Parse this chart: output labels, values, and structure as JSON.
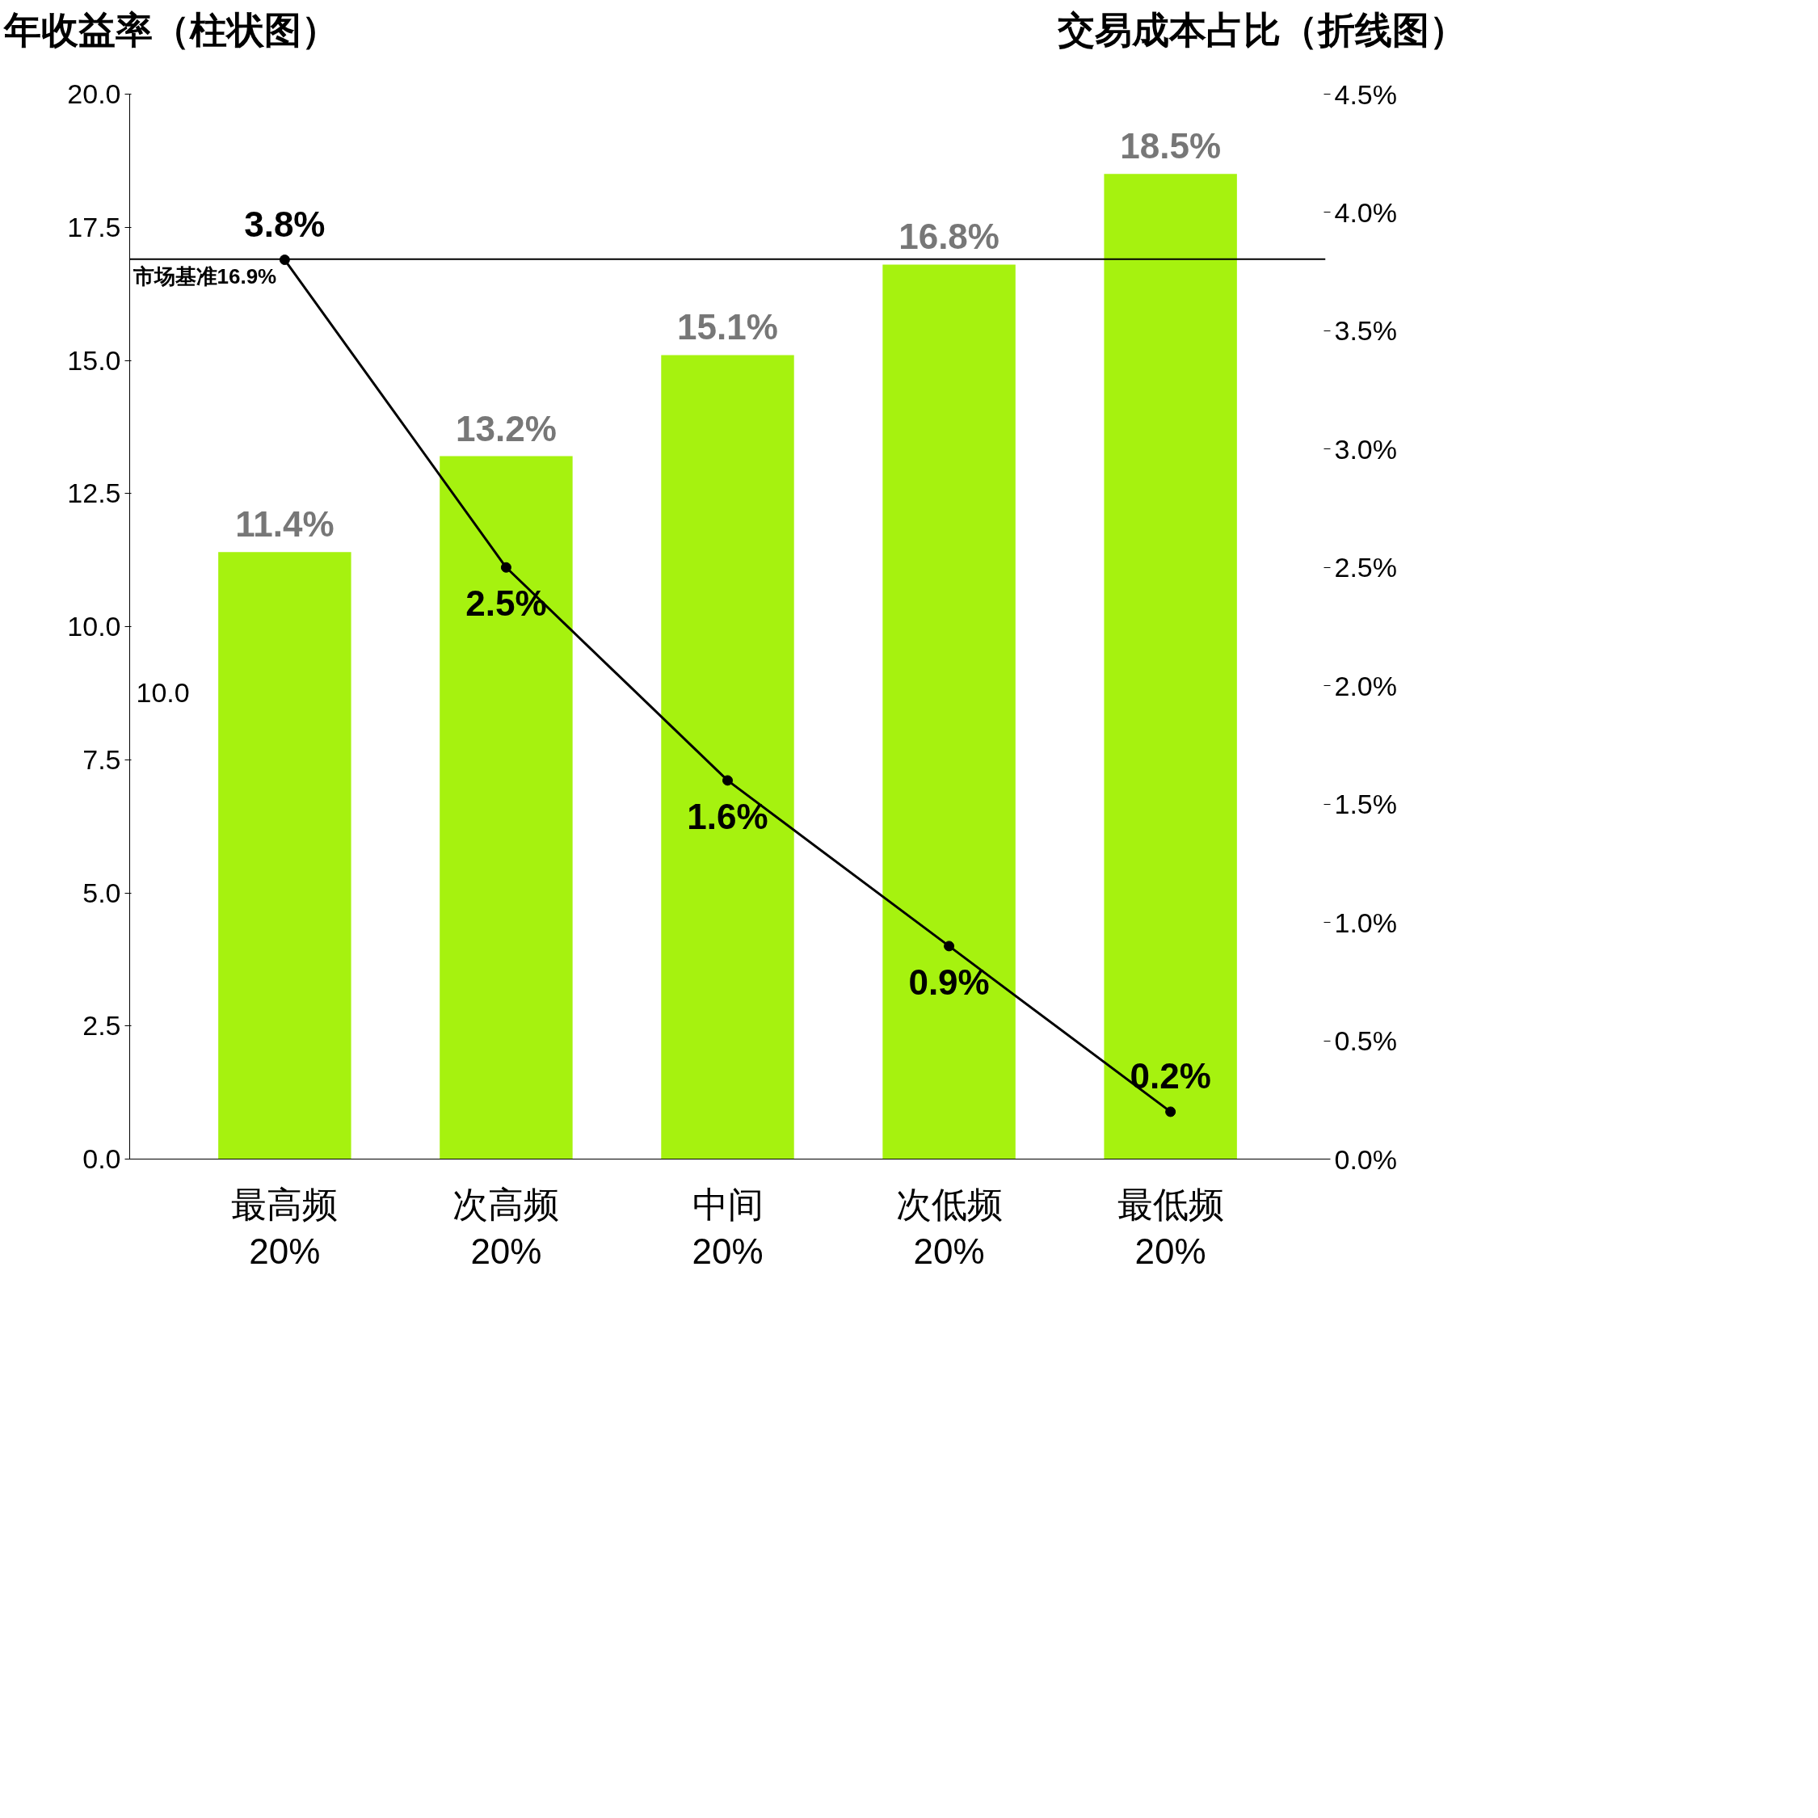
{
  "chart_data": {
    "type": "bar",
    "ylabel": "年收益率（柱状图）",
    "y2label": "交易成本占比（折线图）",
    "categories": [
      "最高频\n20%",
      "次高频\n20%",
      "中间\n20%",
      "次低频\n20%",
      "最低频\n20%"
    ],
    "series": [
      {
        "color": "#a6f20f",
        "values": [
          11.4,
          13.2,
          15.1,
          16.8,
          18.5
        ],
        "value_labels": [
          "11.4%",
          "13.2%",
          "15.1%",
          "16.8%",
          "18.5%"
        ]
      },
      {
        "type": "line",
        "axis": "y2",
        "color": "#000000",
        "marker": "circle",
        "values": [
          3.8,
          2.5,
          1.6,
          0.9,
          0.2
        ],
        "value_labels": [
          "3.8%",
          "2.5%",
          "1.6%",
          "0.9%",
          "0.2%"
        ]
      }
    ],
    "ylim": [
      0,
      20
    ],
    "yticks": [
      {
        "value": 0,
        "label": "0.0"
      },
      2.5,
      {
        "value": 5,
        "label": "5.0"
      },
      7.5,
      {
        "value": 10,
        "label": "10.0"
      },
      12.5,
      {
        "value": 15,
        "label": "15.0"
      },
      17.5,
      {
        "value": 20,
        "label": "20.0"
      }
    ],
    "annotations": [
      "10.0"
    ],
    "y2lim": [
      0,
      4.5
    ],
    "y2ticks": [
      {
        "value": 0,
        "label": "0.0%"
      },
      {
        "value": 0.5,
        "label": "0.5%"
      },
      {
        "value": 1,
        "label": "1.0%"
      },
      {
        "value": 1.5,
        "label": "1.5%"
      },
      {
        "value": 2,
        "label": "2.0%"
      },
      {
        "value": 2.5,
        "label": "2.5%"
      },
      {
        "value": 3,
        "label": "3.0%"
      },
      {
        "value": 3.5,
        "label": "3.5%"
      },
      {
        "value": 4,
        "label": "4.0%"
      },
      {
        "value": 4.5,
        "label": "4.5%"
      }
    ],
    "ref_lines": [
      {
        "axis": "y",
        "value": 16.9,
        "label": "市场基准16.9%",
        "color": "#000000"
      }
    ],
    "grid": false
  }
}
